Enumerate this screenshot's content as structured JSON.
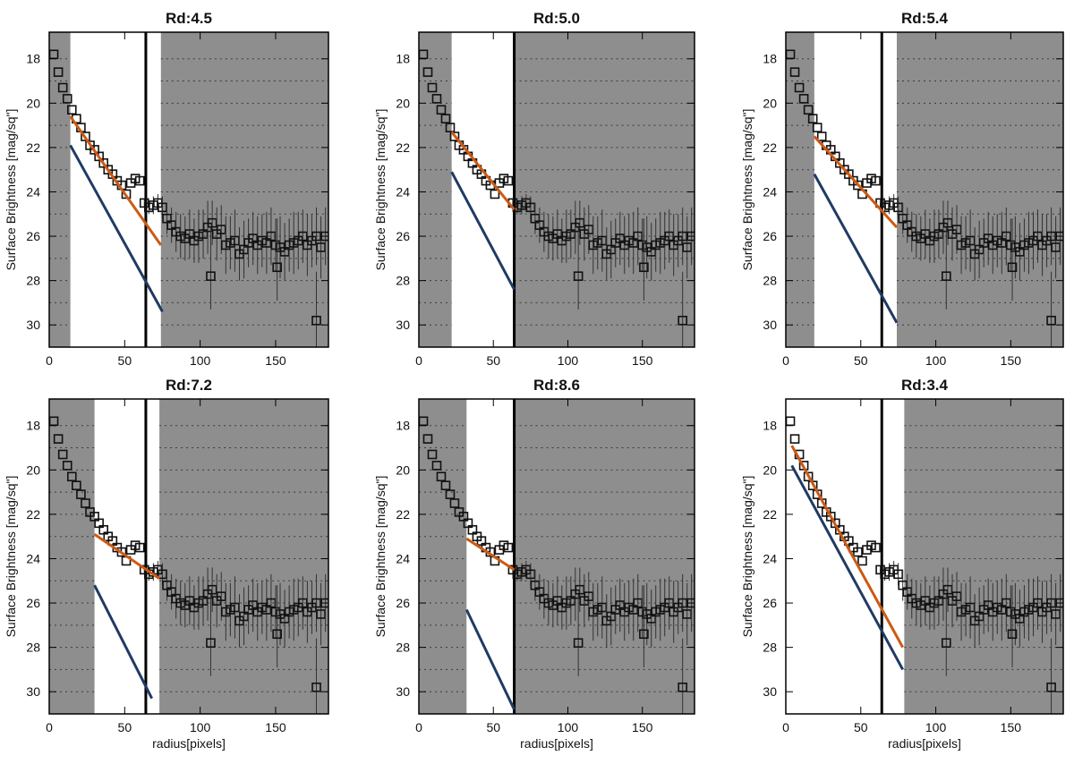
{
  "figure": {
    "note": ""
  },
  "chart_data": [
    {
      "type": "scatter",
      "title": "Rd:4.5",
      "xlabel": "",
      "ylabel": "Surface Brightness [mag/sq\"]",
      "xlim": [
        0,
        185
      ],
      "ylim": [
        31,
        16.8
      ],
      "x_ticks": [
        0,
        50,
        100,
        150
      ],
      "y_ticks": [
        18,
        20,
        22,
        24,
        26,
        28,
        30
      ],
      "shaded_regions": [
        [
          0,
          14
        ],
        [
          74,
          185
        ]
      ],
      "vline": 64,
      "fit_inner": {
        "color": "#cc5a14",
        "x": [
          14,
          74
        ],
        "y": [
          20.6,
          26.4
        ]
      },
      "fit_outer": {
        "color": "#1f3b63",
        "x": [
          14,
          75
        ],
        "y": [
          21.9,
          29.4
        ]
      }
    },
    {
      "type": "scatter",
      "title": "Rd:5.0",
      "xlabel": "",
      "ylabel": "Surface Brightness [mag/sq\"]",
      "xlim": [
        0,
        185
      ],
      "ylim": [
        31,
        16.8
      ],
      "x_ticks": [
        0,
        50,
        100,
        150
      ],
      "y_ticks": [
        18,
        20,
        22,
        24,
        26,
        28,
        30
      ],
      "shaded_regions": [
        [
          0,
          22
        ],
        [
          64,
          185
        ]
      ],
      "vline": 64,
      "fit_inner": {
        "color": "#cc5a14",
        "x": [
          22,
          64
        ],
        "y": [
          21.3,
          24.8
        ]
      },
      "fit_outer": {
        "color": "#1f3b63",
        "x": [
          22,
          64
        ],
        "y": [
          23.1,
          28.4
        ]
      }
    },
    {
      "type": "scatter",
      "title": "Rd:5.4",
      "xlabel": "",
      "ylabel": "Surface Brightness [mag/sq\"]",
      "xlim": [
        0,
        185
      ],
      "ylim": [
        31,
        16.8
      ],
      "x_ticks": [
        0,
        50,
        100,
        150
      ],
      "y_ticks": [
        18,
        20,
        22,
        24,
        26,
        28,
        30
      ],
      "shaded_regions": [
        [
          0,
          19
        ],
        [
          74,
          185
        ]
      ],
      "vline": 64,
      "fit_inner": {
        "color": "#cc5a14",
        "x": [
          19,
          74
        ],
        "y": [
          21.5,
          25.6
        ]
      },
      "fit_outer": {
        "color": "#1f3b63",
        "x": [
          19,
          74
        ],
        "y": [
          23.2,
          29.9
        ]
      }
    },
    {
      "type": "scatter",
      "title": "Rd:7.2",
      "xlabel": "radius[pixels]",
      "ylabel": "Surface Brightness [mag/sq\"]",
      "xlim": [
        0,
        185
      ],
      "ylim": [
        31,
        16.8
      ],
      "x_ticks": [
        0,
        50,
        100,
        150
      ],
      "y_ticks": [
        18,
        20,
        22,
        24,
        26,
        28,
        30
      ],
      "shaded_regions": [
        [
          0,
          30
        ],
        [
          73,
          185
        ]
      ],
      "vline": 64,
      "fit_inner": {
        "color": "#cc5a14",
        "x": [
          30,
          73
        ],
        "y": [
          22.9,
          24.9
        ]
      },
      "fit_outer": {
        "color": "#1f3b63",
        "x": [
          30,
          68
        ],
        "y": [
          25.2,
          30.3
        ]
      }
    },
    {
      "type": "scatter",
      "title": "Rd:8.6",
      "xlabel": "radius[pixels]",
      "ylabel": "Surface Brightness [mag/sq\"]",
      "xlim": [
        0,
        185
      ],
      "ylim": [
        31,
        16.8
      ],
      "x_ticks": [
        0,
        50,
        100,
        150
      ],
      "y_ticks": [
        18,
        20,
        22,
        24,
        26,
        28,
        30
      ],
      "shaded_regions": [
        [
          0,
          32
        ],
        [
          64,
          185
        ]
      ],
      "vline": 64,
      "fit_inner": {
        "color": "#cc5a14",
        "x": [
          32,
          64
        ],
        "y": [
          23.1,
          24.5
        ]
      },
      "fit_outer": {
        "color": "#1f3b63",
        "x": [
          32,
          64
        ],
        "y": [
          26.3,
          30.8
        ]
      }
    },
    {
      "type": "scatter",
      "title": "Rd:3.4",
      "xlabel": "radius[pixels]",
      "ylabel": "Surface Brightness [mag/sq\"]",
      "xlim": [
        0,
        185
      ],
      "ylim": [
        31,
        16.8
      ],
      "x_ticks": [
        0,
        50,
        100,
        150
      ],
      "y_ticks": [
        18,
        20,
        22,
        24,
        26,
        28,
        30
      ],
      "shaded_regions": [
        [
          79,
          185
        ]
      ],
      "vline": 64,
      "fit_inner": {
        "color": "#cc5a14",
        "x": [
          4,
          78
        ],
        "y": [
          18.9,
          28.0
        ]
      },
      "fit_outer": {
        "color": "#1f3b63",
        "x": [
          4,
          78
        ],
        "y": [
          19.8,
          29.0
        ]
      }
    }
  ],
  "profile_points": {
    "x": [
      3,
      6,
      9,
      12,
      15,
      18,
      21,
      24,
      27,
      30,
      33,
      36,
      39,
      42,
      45,
      48,
      51,
      54,
      57,
      60,
      63,
      66,
      69,
      72,
      75,
      78,
      81,
      84,
      87,
      90,
      93,
      96,
      99,
      102,
      105,
      108,
      111,
      114,
      117,
      120,
      123,
      126,
      129,
      132,
      135,
      138,
      141,
      144,
      147,
      150,
      153,
      156,
      159,
      162,
      165,
      168,
      171,
      174,
      177,
      180,
      183
    ],
    "y": [
      17.8,
      18.6,
      19.3,
      19.8,
      20.3,
      20.7,
      21.1,
      21.5,
      21.9,
      22.1,
      22.4,
      22.7,
      23.0,
      23.2,
      23.5,
      23.7,
      24.1,
      23.6,
      23.4,
      23.5,
      24.5,
      24.7,
      24.6,
      24.5,
      24.7,
      25.2,
      25.5,
      25.8,
      26.0,
      26.1,
      25.9,
      26.2,
      26.0,
      25.9,
      25.6,
      25.4,
      25.9,
      25.7,
      26.4,
      26.3,
      26.2,
      26.8,
      26.6,
      26.3,
      26.1,
      26.4,
      26.2,
      26.3,
      26.0,
      26.4,
      26.5,
      26.7,
      26.4,
      26.3,
      26.2,
      26.0,
      26.4,
      26.2,
      26.0,
      26.5,
      26.0
    ],
    "err": [
      0,
      0,
      0,
      0,
      0,
      0,
      0,
      0,
      0,
      0,
      0,
      0,
      0,
      0,
      0,
      0,
      0,
      0,
      0,
      0,
      0.2,
      0.3,
      0.4,
      0.4,
      0.5,
      0.7,
      0.8,
      0.9,
      1.0,
      1.0,
      1.1,
      1.0,
      1.2,
      1.1,
      1.2,
      1.0,
      1.2,
      1.1,
      1.3,
      1.2,
      1.4,
      1.2,
      1.3,
      1.1,
      1.2,
      1.3,
      1.2,
      1.4,
      1.3,
      1.2,
      1.4,
      1.3,
      1.2,
      1.4,
      1.3,
      1.2,
      1.4,
      1.2,
      1.3,
      1.4,
      1.3
    ],
    "outliers": [
      {
        "x": 107,
        "y": 27.8
      },
      {
        "x": 151,
        "y": 27.4
      },
      {
        "x": 177,
        "y": 29.8
      }
    ]
  }
}
